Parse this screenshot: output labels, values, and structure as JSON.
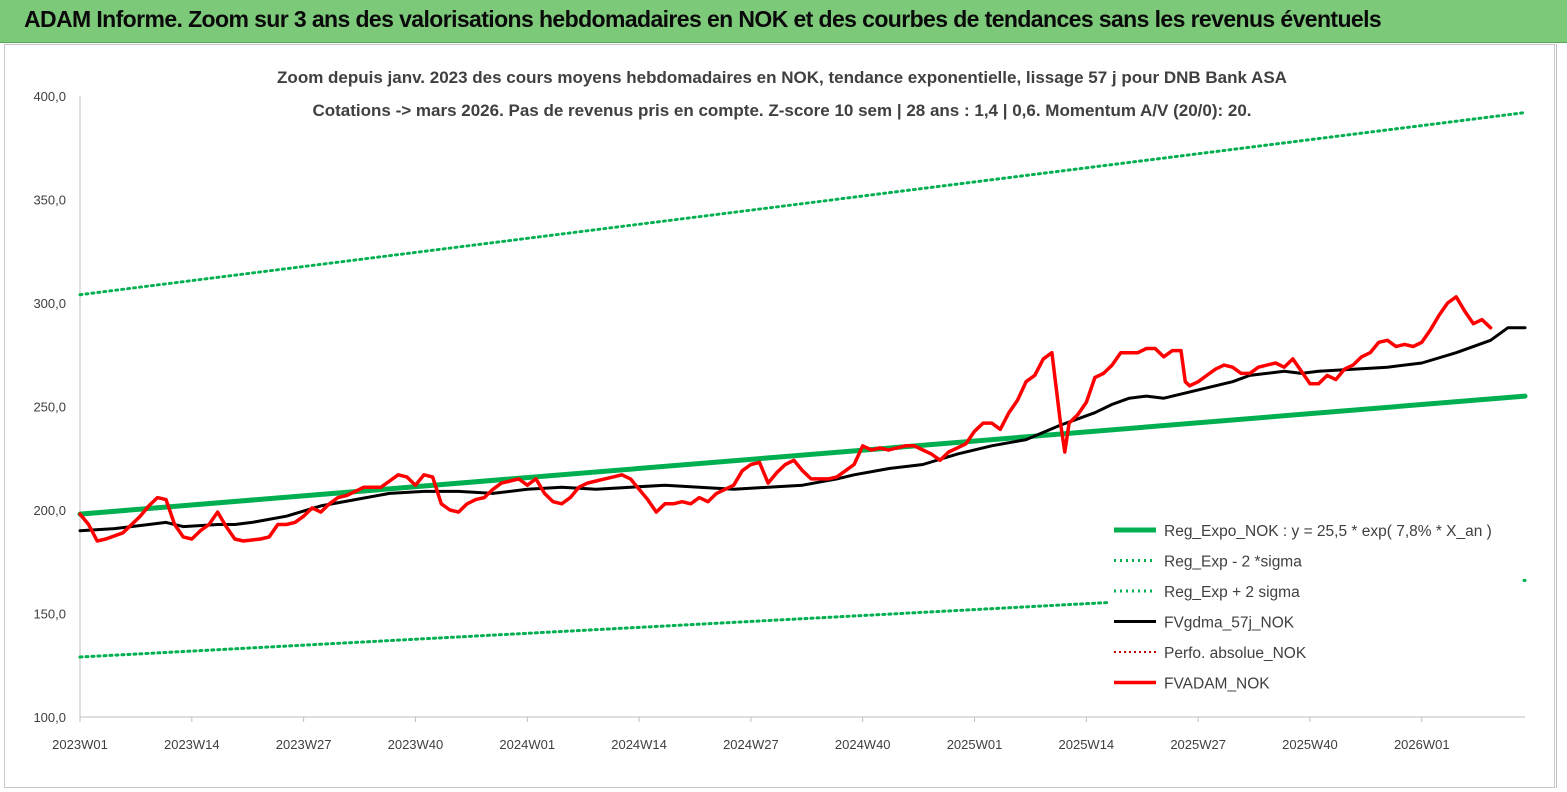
{
  "banner": {
    "title": "ADAM Informe. Zoom sur 3 ans des valorisations hebdomadaires en NOK et des courbes de tendances sans les revenus éventuels"
  },
  "chart_data": {
    "type": "line",
    "title": "Zoom depuis janv. 2023 des cours moyens hebdomadaires en NOK, tendance exponentielle, lissage 57 j pour DNB Bank ASA",
    "subtitle": "Cotations -> mars 2026. Pas de revenus pris en compte. Z-score 10 sem | 28 ans : 1,4 | 0,6. Momentum A/V (20/0): 20.",
    "x_tick_labels": [
      "2023W01",
      "2023W14",
      "2023W27",
      "2023W40",
      "2024W01",
      "2024W14",
      "2024W27",
      "2024W40",
      "2025W01",
      "2025W14",
      "2025W27",
      "2025W40",
      "2026W01"
    ],
    "y_tick_labels": [
      "400,0",
      "350,0",
      "300,0",
      "250,0",
      "200,0",
      "150,0",
      "100,0"
    ],
    "ylim": [
      100,
      400
    ],
    "grid": false,
    "legend_position": "bottom-right",
    "legend": [
      "Reg_Expo_NOK : y = 25,5 * exp( 7,8% *  X_an )",
      "Reg_Exp - 2 *sigma",
      "Reg_Exp + 2 sigma",
      "FVgdma_57j_NOK",
      "Perfo. absolue_NOK",
      "FVADAM_NOK"
    ],
    "colors": {
      "reg": "#00b050",
      "sigma": "#00b050",
      "fvgdma": "#000000",
      "perfo": "#c00000",
      "fvadam": "#ff0000",
      "banner": "#7dc97a"
    },
    "series": [
      {
        "name": "Reg_Expo_NOK : y = 25,5 * exp( 7,8% *  X_an )",
        "style": "solid",
        "values": [
          [
            0,
            198
          ],
          [
            168,
            255
          ]
        ]
      },
      {
        "name": "Reg_Exp - 2 *sigma",
        "style": "dotted",
        "values": [
          [
            0,
            129
          ],
          [
            168,
            166
          ]
        ]
      },
      {
        "name": "Reg_Exp + 2 sigma",
        "style": "dotted",
        "values": [
          [
            0,
            304
          ],
          [
            168,
            392
          ]
        ]
      },
      {
        "name": "FVgdma_57j_NOK",
        "style": "solid",
        "values": [
          [
            0,
            190
          ],
          [
            4,
            191
          ],
          [
            8,
            193
          ],
          [
            10,
            194
          ],
          [
            12,
            192
          ],
          [
            16,
            193
          ],
          [
            18,
            193
          ],
          [
            20,
            194
          ],
          [
            24,
            197
          ],
          [
            28,
            202
          ],
          [
            32,
            205
          ],
          [
            36,
            208
          ],
          [
            40,
            209
          ],
          [
            44,
            209
          ],
          [
            48,
            208
          ],
          [
            52,
            210
          ],
          [
            56,
            211
          ],
          [
            60,
            210
          ],
          [
            64,
            211
          ],
          [
            68,
            212
          ],
          [
            72,
            211
          ],
          [
            76,
            210
          ],
          [
            80,
            211
          ],
          [
            84,
            212
          ],
          [
            88,
            215
          ],
          [
            90,
            217
          ],
          [
            94,
            220
          ],
          [
            98,
            222
          ],
          [
            102,
            227
          ],
          [
            106,
            231
          ],
          [
            110,
            234
          ],
          [
            114,
            241
          ],
          [
            118,
            247
          ],
          [
            120,
            251
          ],
          [
            122,
            254
          ],
          [
            124,
            255
          ],
          [
            126,
            254
          ],
          [
            130,
            258
          ],
          [
            134,
            262
          ],
          [
            136,
            265
          ],
          [
            140,
            267
          ],
          [
            142,
            266
          ],
          [
            144,
            267
          ],
          [
            148,
            268
          ],
          [
            152,
            269
          ],
          [
            156,
            271
          ],
          [
            160,
            276
          ],
          [
            164,
            282
          ],
          [
            166,
            288
          ],
          [
            168,
            288
          ]
        ]
      },
      {
        "name": "Perfo. absolue_NOK",
        "style": "dotted",
        "values": []
      },
      {
        "name": "FVADAM_NOK",
        "style": "solid",
        "values": [
          [
            0,
            198
          ],
          [
            1,
            193
          ],
          [
            2,
            185
          ],
          [
            3,
            186
          ],
          [
            5,
            189
          ],
          [
            7,
            197
          ],
          [
            8,
            202
          ],
          [
            9,
            206
          ],
          [
            10,
            205
          ],
          [
            11,
            193
          ],
          [
            12,
            187
          ],
          [
            13,
            186
          ],
          [
            14,
            190
          ],
          [
            15,
            193
          ],
          [
            16,
            199
          ],
          [
            17,
            192
          ],
          [
            18,
            186
          ],
          [
            19,
            185
          ],
          [
            21,
            186
          ],
          [
            22,
            187
          ],
          [
            23,
            193
          ],
          [
            24,
            193
          ],
          [
            25,
            194
          ],
          [
            26,
            197
          ],
          [
            27,
            201
          ],
          [
            28,
            199
          ],
          [
            29,
            203
          ],
          [
            30,
            206
          ],
          [
            31,
            207
          ],
          [
            32,
            209
          ],
          [
            33,
            211
          ],
          [
            34,
            211
          ],
          [
            35,
            211
          ],
          [
            36,
            214
          ],
          [
            37,
            217
          ],
          [
            38,
            216
          ],
          [
            39,
            212
          ],
          [
            40,
            217
          ],
          [
            41,
            216
          ],
          [
            42,
            203
          ],
          [
            43,
            200
          ],
          [
            44,
            199
          ],
          [
            45,
            203
          ],
          [
            46,
            205
          ],
          [
            47,
            206
          ],
          [
            48,
            210
          ],
          [
            49,
            213
          ],
          [
            50,
            214
          ],
          [
            51,
            215
          ],
          [
            52,
            212
          ],
          [
            53,
            215
          ],
          [
            54,
            208
          ],
          [
            55,
            204
          ],
          [
            56,
            203
          ],
          [
            57,
            206
          ],
          [
            58,
            211
          ],
          [
            59,
            213
          ],
          [
            60,
            214
          ],
          [
            61,
            215
          ],
          [
            62,
            216
          ],
          [
            63,
            217
          ],
          [
            64,
            215
          ],
          [
            65,
            210
          ],
          [
            66,
            205
          ],
          [
            67,
            199
          ],
          [
            68,
            203
          ],
          [
            69,
            203
          ],
          [
            70,
            204
          ],
          [
            71,
            203
          ],
          [
            72,
            206
          ],
          [
            73,
            204
          ],
          [
            74,
            208
          ],
          [
            75,
            210
          ],
          [
            76,
            212
          ],
          [
            77,
            219
          ],
          [
            78,
            222
          ],
          [
            79,
            223
          ],
          [
            80,
            213
          ],
          [
            81,
            218
          ],
          [
            82,
            222
          ],
          [
            83,
            224
          ],
          [
            84,
            219
          ],
          [
            85,
            215
          ],
          [
            86,
            215
          ],
          [
            87,
            215
          ],
          [
            88,
            216
          ],
          [
            89,
            219
          ],
          [
            90,
            222
          ],
          [
            91,
            231
          ],
          [
            92,
            229
          ],
          [
            93,
            230
          ],
          [
            94,
            229
          ],
          [
            95,
            230
          ],
          [
            96,
            231
          ],
          [
            97,
            231
          ],
          [
            98,
            229
          ],
          [
            99,
            227
          ],
          [
            100,
            224
          ],
          [
            101,
            228
          ],
          [
            102,
            230
          ],
          [
            103,
            232
          ],
          [
            104,
            238
          ],
          [
            105,
            242
          ],
          [
            106,
            242
          ],
          [
            107,
            239
          ],
          [
            108,
            247
          ],
          [
            109,
            253
          ],
          [
            110,
            262
          ],
          [
            111,
            265
          ],
          [
            112,
            273
          ],
          [
            113,
            276
          ],
          [
            114,
            242
          ],
          [
            114.5,
            228
          ],
          [
            115,
            242
          ],
          [
            116,
            246
          ],
          [
            117,
            252
          ],
          [
            118,
            264
          ],
          [
            119,
            266
          ],
          [
            120,
            270
          ],
          [
            121,
            276
          ],
          [
            122,
            276
          ],
          [
            123,
            276
          ],
          [
            124,
            278
          ],
          [
            125,
            278
          ],
          [
            126,
            274
          ],
          [
            127,
            277
          ],
          [
            128,
            277
          ],
          [
            128.5,
            262
          ],
          [
            129,
            260
          ],
          [
            130,
            262
          ],
          [
            131,
            265
          ],
          [
            132,
            268
          ],
          [
            133,
            270
          ],
          [
            134,
            269
          ],
          [
            135,
            266
          ],
          [
            136,
            266
          ],
          [
            137,
            269
          ],
          [
            138,
            270
          ],
          [
            139,
            271
          ],
          [
            140,
            269
          ],
          [
            141,
            273
          ],
          [
            142,
            267
          ],
          [
            143,
            261
          ],
          [
            144,
            261
          ],
          [
            145,
            265
          ],
          [
            146,
            263
          ],
          [
            147,
            268
          ],
          [
            148,
            270
          ],
          [
            149,
            274
          ],
          [
            150,
            276
          ],
          [
            151,
            281
          ],
          [
            152,
            282
          ],
          [
            153,
            279
          ],
          [
            154,
            280
          ],
          [
            155,
            279
          ],
          [
            156,
            281
          ],
          [
            157,
            287
          ],
          [
            158,
            294
          ],
          [
            159,
            300
          ],
          [
            160,
            303
          ],
          [
            161,
            296
          ],
          [
            162,
            290
          ],
          [
            163,
            292
          ],
          [
            164,
            288
          ]
        ]
      }
    ]
  }
}
